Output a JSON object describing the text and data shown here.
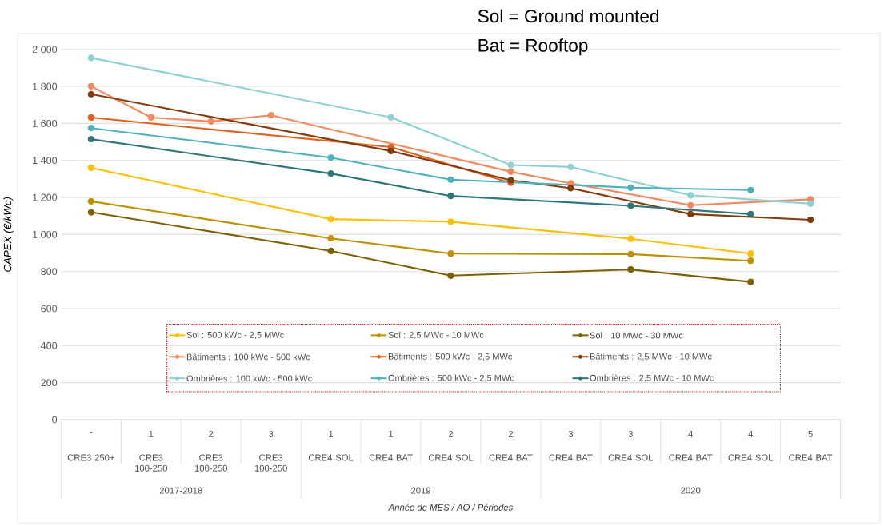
{
  "chart_data": {
    "type": "line",
    "xlabel": "Année de MES / AO / Périodes",
    "ylabel": "CAPEX (€/kWc)",
    "categories": [
      "CRE3 250+",
      "CRE3 100-250",
      "CRE3 100-250",
      "CRE3 100-250",
      "CRE4 SOL",
      "CRE4 BAT",
      "CRE4 SOL",
      "CRE4 BAT",
      "CRE4 BAT",
      "CRE4 SOL",
      "CRE4 BAT",
      "CRE4 SOL",
      "CRE4 BAT"
    ],
    "annotations": [
      "-",
      "1",
      "2",
      "3",
      "1",
      "1",
      "2",
      "2",
      "3",
      "3",
      "4",
      "4",
      "5",
      "2017-2018",
      "2019",
      "2020",
      "Sol = Ground mounted",
      "Bat = Rooftop"
    ],
    "ylim": [
      0,
      2000
    ],
    "yticks": [
      0,
      200,
      400,
      600,
      800,
      {
        "value": 1000,
        "label": "1 000"
      },
      {
        "value": 1200,
        "label": "1 200"
      },
      {
        "value": 1400,
        "label": "1 400"
      },
      {
        "value": 1600,
        "label": "1 600"
      },
      {
        "value": 1800,
        "label": "1 800"
      },
      {
        "value": 2000,
        "label": "2 000"
      }
    ],
    "grid": "y",
    "legend": "bottom",
    "marker": "circle",
    "line_style": "solid",
    "series": [
      {
        "name": "Sol : 500 kWc - 2,5 MWc",
        "color": "#ffc000",
        "values": [
          1360,
          null,
          null,
          null,
          1083,
          null,
          1069,
          null,
          null,
          977,
          null,
          897,
          null
        ]
      },
      {
        "name": "Sol : 2,5 MWc - 10 MWc",
        "color": "#bf9000",
        "values": [
          1179,
          null,
          null,
          null,
          979,
          null,
          897,
          null,
          null,
          894,
          null,
          858,
          null
        ]
      },
      {
        "name": "Sol : 10 MWc - 30 MWc",
        "color": "#7f6000",
        "values": [
          1120,
          null,
          null,
          null,
          911,
          null,
          778,
          null,
          null,
          811,
          null,
          744,
          null
        ]
      },
      {
        "name": "Bâtiments : 100 kWc - 500 kWc",
        "color": "#f4895f",
        "values": [
          1801,
          1632,
          1611,
          1644,
          null,
          null,
          null,
          1339,
          1276,
          null,
          1158,
          null,
          1190
        ]
      },
      {
        "name": "Bâtiments : 500 kWc - 2,5 MWc",
        "color": "#e0611f",
        "values": [
          1632,
          null,
          null,
          null,
          null,
          1472,
          null,
          1279,
          null,
          null,
          null,
          null,
          null
        ]
      },
      {
        "name": "Bâtiments : 2,5 MWc - 10 MWc",
        "color": "#843c0c",
        "values": [
          1758,
          null,
          null,
          null,
          null,
          1451,
          null,
          1293,
          1250,
          null,
          1110,
          null,
          1079
        ]
      },
      {
        "name": "Ombrières : 100 kWc - 500 kWc",
        "color": "#8fd0d3",
        "values": [
          1954,
          null,
          null,
          null,
          null,
          1633,
          null,
          1375,
          1365,
          null,
          1212,
          null,
          1166
        ]
      },
      {
        "name": "Ombrières : 500 kWc - 2,5 MWc",
        "color": "#4bb3bd",
        "values": [
          1575,
          null,
          null,
          null,
          1415,
          null,
          1296,
          null,
          null,
          1253,
          null,
          1240,
          null
        ]
      },
      {
        "name": "Ombrières : 2,5 MWc - 10 MWc",
        "color": "#2e7678",
        "values": [
          1515,
          null,
          null,
          null,
          1329,
          null,
          1208,
          null,
          null,
          1155,
          null,
          1110,
          null
        ]
      }
    ]
  }
}
